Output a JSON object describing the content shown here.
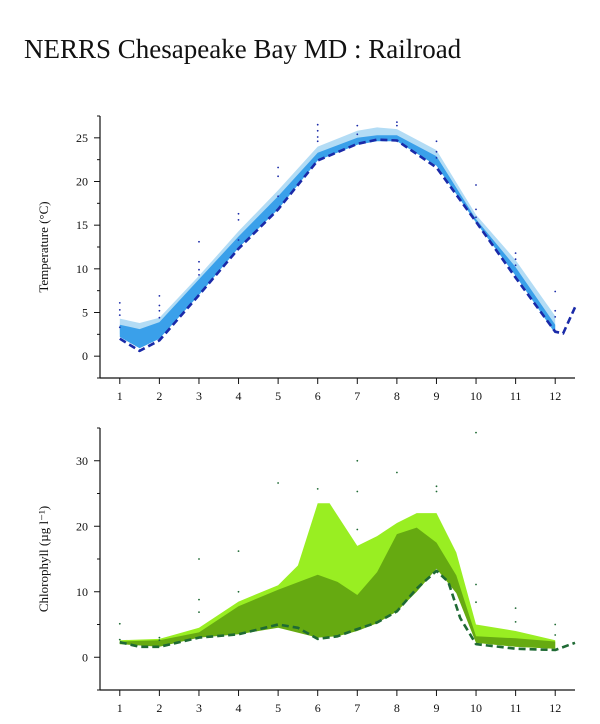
{
  "page": {
    "title": "NERRS Chesapeake Bay MD : Railroad"
  },
  "chart_data": [
    {
      "type": "area",
      "ylabel": "Temperature (°C)",
      "xlim": [
        0.5,
        12.5
      ],
      "ylim": [
        -2.5,
        27.5
      ],
      "x_ticks": [
        1,
        2,
        3,
        4,
        5,
        6,
        7,
        8,
        9,
        10,
        11,
        12
      ],
      "y_ticks": [
        0,
        5,
        10,
        15,
        20,
        25
      ],
      "colors": {
        "upper_band": "#b3dcf5",
        "lower_band": "#3aa0ea",
        "median_line": "#1a2aa8",
        "points": "#1a2aa8"
      },
      "series": [
        {
          "role": "upper_band",
          "x": [
            1,
            1.5,
            2,
            3,
            4,
            5,
            6,
            7,
            7.5,
            8,
            9,
            10,
            11,
            12
          ],
          "top": [
            4.3,
            3.8,
            4.4,
            9.2,
            14.3,
            19.0,
            24.0,
            25.8,
            26.2,
            26.0,
            23.6,
            16.2,
            11.0,
            4.6
          ],
          "bottom": [
            2.5,
            1.6,
            2.8,
            7.5,
            12.8,
            17.3,
            22.6,
            24.4,
            24.8,
            24.8,
            22.0,
            15.3,
            9.5,
            3.0
          ]
        },
        {
          "role": "lower_band",
          "x": [
            1,
            1.5,
            2,
            3,
            4,
            5,
            6,
            7,
            7.5,
            8,
            9,
            10,
            11,
            12
          ],
          "top": [
            3.6,
            3.1,
            3.9,
            8.8,
            13.7,
            18.3,
            23.3,
            25.0,
            25.3,
            25.3,
            22.9,
            15.7,
            10.2,
            3.6
          ],
          "bottom": [
            2.2,
            0.9,
            2.0,
            7.0,
            12.4,
            16.8,
            22.4,
            24.2,
            24.6,
            24.6,
            21.8,
            15.3,
            9.2,
            2.6
          ]
        },
        {
          "role": "median_line",
          "x": [
            1,
            1.5,
            2,
            3,
            4,
            5,
            6,
            7,
            7.5,
            8,
            9,
            10,
            11,
            12,
            12.2,
            12.5
          ],
          "y": [
            2.0,
            0.6,
            1.8,
            7.0,
            12.3,
            16.8,
            22.4,
            24.3,
            24.8,
            24.7,
            21.6,
            15.4,
            9.0,
            2.8,
            2.6,
            5.6
          ]
        },
        {
          "role": "points",
          "x": [
            1,
            1,
            1,
            1,
            2,
            2,
            2,
            2,
            3,
            3,
            3,
            3,
            4,
            4,
            4,
            5,
            5,
            5,
            6,
            6,
            6,
            6,
            7,
            7,
            8,
            8,
            9,
            9,
            9,
            10,
            10,
            10,
            11,
            11,
            11,
            12,
            12,
            12
          ],
          "y": [
            6.1,
            5.3,
            4.7,
            3.3,
            6.9,
            5.8,
            5.2,
            4.4,
            13.1,
            10.8,
            9.9,
            9.3,
            16.3,
            15.6,
            13.3,
            21.6,
            20.6,
            18.3,
            26.5,
            25.8,
            25.1,
            24.6,
            26.4,
            25.4,
            26.8,
            26.4,
            24.6,
            23.4,
            22.7,
            19.6,
            16.8,
            15.9,
            11.8,
            11.1,
            10.4,
            7.4,
            5.2,
            4.5
          ]
        }
      ]
    },
    {
      "type": "area",
      "ylabel": "Chlorophyll (µg l⁻¹)",
      "xlim": [
        0.5,
        12.5
      ],
      "ylim": [
        -5,
        35
      ],
      "x_ticks": [
        1,
        2,
        3,
        4,
        5,
        6,
        7,
        8,
        9,
        10,
        11,
        12
      ],
      "y_ticks": [
        0,
        10,
        20,
        30
      ],
      "colors": {
        "upper_band": "#99ee22",
        "lower_band": "#66aa11",
        "median_line": "#1f6a34",
        "points": "#1f6a34"
      },
      "series": [
        {
          "role": "upper_band",
          "x": [
            1,
            2,
            3,
            4,
            5,
            5.5,
            6,
            6.3,
            7,
            7.5,
            8,
            8.5,
            9,
            9.5,
            10,
            11,
            12
          ],
          "top": [
            2.6,
            2.8,
            4.5,
            8.5,
            11.0,
            14.0,
            23.5,
            23.5,
            17.0,
            18.5,
            20.5,
            22.0,
            22.0,
            16.0,
            5.0,
            4.0,
            2.6
          ],
          "bottom": [
            2.0,
            1.8,
            3.4,
            4.0,
            5.0,
            5.0,
            4.0,
            3.6,
            4.8,
            6.0,
            8.0,
            11.0,
            14.0,
            10.0,
            2.2,
            1.6,
            1.3
          ]
        },
        {
          "role": "lower_band",
          "x": [
            1,
            2,
            3,
            4,
            5,
            6,
            6.5,
            7,
            7.5,
            8,
            8.5,
            9,
            9.5,
            10,
            11,
            12
          ],
          "top": [
            2.4,
            2.6,
            3.8,
            7.8,
            10.3,
            12.6,
            11.5,
            9.5,
            13.0,
            18.8,
            19.8,
            17.5,
            12.5,
            3.2,
            2.9,
            2.4
          ],
          "bottom": [
            2.0,
            1.6,
            3.0,
            3.5,
            4.5,
            3.0,
            3.2,
            4.0,
            5.2,
            7.0,
            10.0,
            13.5,
            9.8,
            2.2,
            1.6,
            1.3
          ]
        },
        {
          "role": "median_line",
          "x": [
            1,
            1.5,
            2,
            3,
            4,
            5,
            5.5,
            6,
            6.5,
            7,
            7.5,
            8,
            8.5,
            9,
            9.3,
            9.6,
            10,
            11,
            12,
            12.5
          ],
          "y": [
            2.3,
            1.6,
            1.6,
            3.0,
            3.5,
            5.0,
            4.5,
            2.8,
            3.2,
            4.3,
            5.3,
            7.0,
            10.5,
            13.2,
            11.5,
            6.0,
            2.0,
            1.3,
            1.1,
            2.2
          ]
        },
        {
          "role": "points",
          "x": [
            1,
            1,
            2,
            2,
            3,
            3,
            3,
            4,
            4,
            5,
            6,
            7,
            7,
            7,
            8,
            9,
            9,
            10,
            10,
            10,
            11,
            11,
            12,
            12
          ],
          "y": [
            5.1,
            2.7,
            3.0,
            2.6,
            15.0,
            8.8,
            6.9,
            16.2,
            10.0,
            26.6,
            25.7,
            30.0,
            25.3,
            19.5,
            28.2,
            26.1,
            25.3,
            34.3,
            11.1,
            8.4,
            7.5,
            5.4,
            5.0,
            3.4
          ]
        }
      ]
    }
  ]
}
